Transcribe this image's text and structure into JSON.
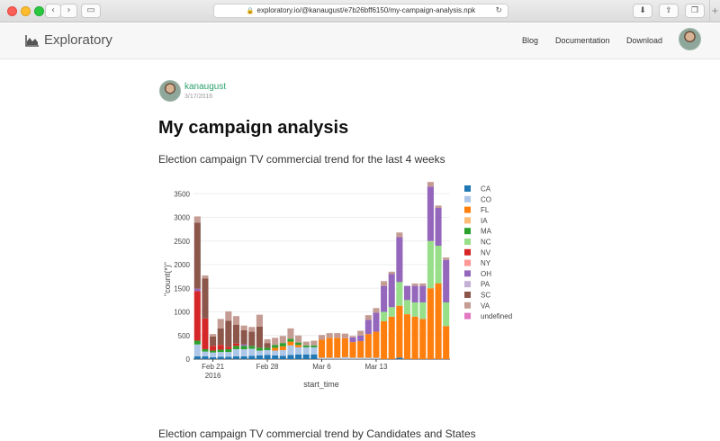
{
  "browser": {
    "url": "exploratory.io/@kanaugust/e7b26bff6150/my-campaign-analysis.npk",
    "back_icon": "‹",
    "forward_icon": "›",
    "sidebar_icon": "▭",
    "lock_icon": "🔒",
    "reload_icon": "↻",
    "download_icon": "⬇",
    "share_icon": "⇪",
    "tabs_icon": "❐",
    "new_tab_icon": "+"
  },
  "header": {
    "brand": "Exploratory",
    "nav": [
      "Blog",
      "Documentation",
      "Download"
    ]
  },
  "post": {
    "author": "kanaugust",
    "date": "3/17/2016",
    "title": "My campaign analysis",
    "chart1_title": "Election campaign TV commercial trend for the last 4 weeks",
    "chart2_title": "Election campaign TV commercial trend by Candidates and States"
  },
  "chart_data": {
    "type": "bar",
    "stacked": true,
    "xlabel": "start_time",
    "ylabel": "\"count(*)\"",
    "ylim": [
      0,
      3600
    ],
    "yticks": [
      0,
      500,
      1000,
      1500,
      2000,
      2500,
      3000,
      3500
    ],
    "xticks": [
      {
        "day": 2,
        "label": "Feb 21",
        "sub": "2016"
      },
      {
        "day": 9,
        "label": "Feb 28",
        "sub": ""
      },
      {
        "day": 16,
        "label": "Mar 6",
        "sub": ""
      },
      {
        "day": 23,
        "label": "Mar 13",
        "sub": ""
      }
    ],
    "legend_position": "right",
    "series": [
      {
        "name": "CA",
        "color": "#1f77b4",
        "values": [
          60,
          60,
          40,
          50,
          50,
          60,
          60,
          70,
          80,
          90,
          80,
          70,
          90,
          100,
          100,
          100,
          0,
          0,
          0,
          0,
          0,
          0,
          0,
          0,
          0,
          0,
          30,
          0,
          0,
          0,
          0,
          0,
          0
        ]
      },
      {
        "name": "CO",
        "color": "#aec7e8",
        "values": [
          250,
          100,
          100,
          100,
          100,
          150,
          150,
          150,
          100,
          100,
          100,
          120,
          200,
          150,
          150,
          150,
          30,
          30,
          30,
          40,
          30,
          30,
          30,
          30,
          0,
          0,
          0,
          0,
          0,
          0,
          0,
          0,
          0
        ]
      },
      {
        "name": "FL",
        "color": "#ff7f0e",
        "values": [
          0,
          0,
          0,
          0,
          0,
          0,
          0,
          0,
          0,
          0,
          60,
          80,
          80,
          50,
          0,
          0,
          380,
          420,
          420,
          400,
          330,
          350,
          500,
          550,
          800,
          900,
          1100,
          950,
          900,
          850,
          1500,
          1600,
          700
        ]
      },
      {
        "name": "IA",
        "color": "#ffbb78",
        "values": [
          0,
          0,
          0,
          0,
          0,
          0,
          0,
          0,
          0,
          0,
          0,
          0,
          0,
          0,
          0,
          0,
          0,
          0,
          0,
          0,
          0,
          0,
          0,
          0,
          0,
          0,
          0,
          0,
          0,
          0,
          0,
          0,
          0
        ]
      },
      {
        "name": "MA",
        "color": "#2ca02c",
        "values": [
          80,
          50,
          40,
          50,
          60,
          70,
          70,
          60,
          60,
          50,
          60,
          70,
          60,
          50,
          40,
          40,
          0,
          0,
          0,
          0,
          0,
          0,
          0,
          0,
          0,
          0,
          0,
          0,
          0,
          0,
          0,
          0,
          0
        ]
      },
      {
        "name": "NC",
        "color": "#98df8a",
        "values": [
          0,
          0,
          0,
          0,
          0,
          0,
          0,
          0,
          0,
          0,
          0,
          0,
          0,
          0,
          0,
          0,
          0,
          0,
          0,
          0,
          0,
          0,
          0,
          0,
          200,
          200,
          500,
          300,
          300,
          350,
          1000,
          800,
          500
        ]
      },
      {
        "name": "NV",
        "color": "#d62728",
        "values": [
          1050,
          650,
          100,
          100,
          50,
          50,
          0,
          0,
          0,
          0,
          0,
          0,
          0,
          0,
          0,
          0,
          0,
          0,
          0,
          0,
          0,
          0,
          0,
          0,
          0,
          0,
          0,
          0,
          0,
          0,
          0,
          0,
          0
        ]
      },
      {
        "name": "NY",
        "color": "#ff9896",
        "values": [
          0,
          0,
          0,
          0,
          0,
          0,
          0,
          0,
          0,
          0,
          0,
          0,
          0,
          0,
          0,
          0,
          0,
          0,
          0,
          0,
          0,
          0,
          0,
          0,
          0,
          0,
          0,
          0,
          0,
          0,
          0,
          0,
          0
        ]
      },
      {
        "name": "OH",
        "color": "#9467bd",
        "values": [
          50,
          0,
          0,
          0,
          0,
          0,
          30,
          0,
          0,
          0,
          0,
          0,
          0,
          0,
          0,
          0,
          0,
          0,
          0,
          0,
          100,
          120,
          300,
          400,
          550,
          700,
          950,
          300,
          350,
          350,
          1150,
          800,
          900
        ]
      },
      {
        "name": "PA",
        "color": "#c5b0d5",
        "values": [
          0,
          0,
          0,
          0,
          0,
          0,
          0,
          0,
          0,
          0,
          0,
          0,
          0,
          0,
          0,
          0,
          0,
          0,
          0,
          0,
          0,
          0,
          0,
          0,
          0,
          0,
          0,
          0,
          0,
          0,
          0,
          0,
          0
        ]
      },
      {
        "name": "SC",
        "color": "#8c564b",
        "values": [
          1400,
          850,
          200,
          350,
          550,
          400,
          300,
          300,
          450,
          100,
          0,
          0,
          0,
          0,
          0,
          0,
          0,
          0,
          0,
          0,
          0,
          0,
          0,
          0,
          0,
          0,
          0,
          0,
          0,
          0,
          0,
          0,
          0
        ]
      },
      {
        "name": "VA",
        "color": "#c49c94",
        "values": [
          130,
          60,
          50,
          200,
          200,
          180,
          100,
          100,
          250,
          80,
          150,
          150,
          220,
          150,
          80,
          100,
          100,
          100,
          100,
          100,
          30,
          100,
          100,
          100,
          100,
          50,
          100,
          0,
          50,
          50,
          100,
          50,
          50
        ]
      },
      {
        "name": "undefined",
        "color": "#e377c2",
        "values": [
          0,
          0,
          0,
          0,
          0,
          0,
          0,
          0,
          0,
          0,
          0,
          0,
          0,
          0,
          0,
          0,
          0,
          0,
          0,
          0,
          0,
          0,
          0,
          0,
          0,
          0,
          0,
          0,
          0,
          0,
          0,
          0,
          0
        ]
      }
    ]
  }
}
